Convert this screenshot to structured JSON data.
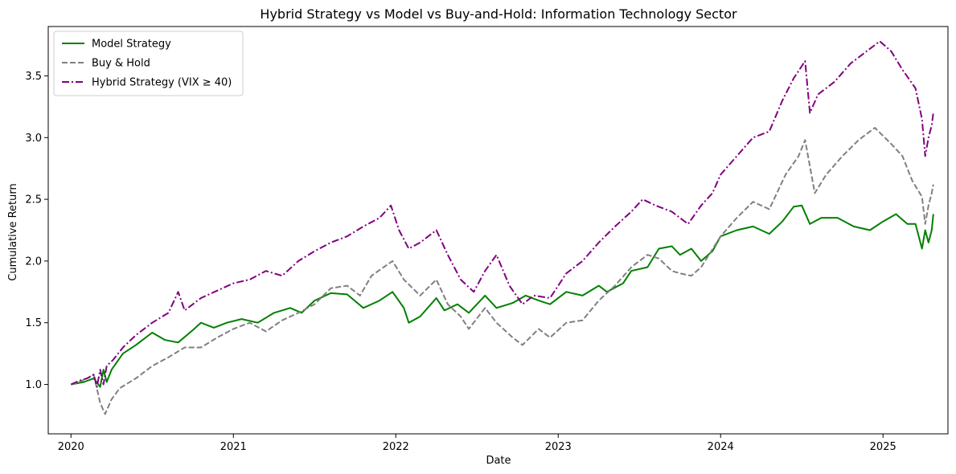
{
  "chart_data": {
    "type": "line",
    "title": "Hybrid Strategy vs Model vs Buy-and-Hold: Information Technology Sector",
    "xlabel": "Date",
    "ylabel": "Cumulative Return",
    "xlim": [
      2019.86,
      2025.4
    ],
    "ylim": [
      0.6,
      3.9
    ],
    "x_ticks": [
      2020,
      2021,
      2022,
      2023,
      2024,
      2025
    ],
    "x_tick_labels": [
      "2020",
      "2021",
      "2022",
      "2023",
      "2024",
      "2025"
    ],
    "y_ticks": [
      1.0,
      1.5,
      2.0,
      2.5,
      3.0,
      3.5
    ],
    "y_tick_labels": [
      "1.0",
      "1.5",
      "2.0",
      "2.5",
      "3.0",
      "3.5"
    ],
    "grid": false,
    "legend_position": "top-left",
    "series": [
      {
        "name": "Model Strategy",
        "color": "#008000",
        "style": "solid",
        "points": [
          [
            2020.0,
            1.0
          ],
          [
            2020.08,
            1.02
          ],
          [
            2020.14,
            1.05
          ],
          [
            2020.18,
            0.98
          ],
          [
            2020.2,
            1.12
          ],
          [
            2020.22,
            1.02
          ],
          [
            2020.25,
            1.12
          ],
          [
            2020.32,
            1.25
          ],
          [
            2020.4,
            1.32
          ],
          [
            2020.5,
            1.42
          ],
          [
            2020.58,
            1.36
          ],
          [
            2020.66,
            1.34
          ],
          [
            2020.75,
            1.44
          ],
          [
            2020.8,
            1.5
          ],
          [
            2020.88,
            1.46
          ],
          [
            2020.96,
            1.5
          ],
          [
            2021.05,
            1.53
          ],
          [
            2021.15,
            1.5
          ],
          [
            2021.25,
            1.58
          ],
          [
            2021.35,
            1.62
          ],
          [
            2021.42,
            1.58
          ],
          [
            2021.5,
            1.68
          ],
          [
            2021.6,
            1.74
          ],
          [
            2021.7,
            1.73
          ],
          [
            2021.8,
            1.62
          ],
          [
            2021.9,
            1.68
          ],
          [
            2021.98,
            1.75
          ],
          [
            2022.05,
            1.62
          ],
          [
            2022.08,
            1.5
          ],
          [
            2022.15,
            1.55
          ],
          [
            2022.25,
            1.7
          ],
          [
            2022.3,
            1.6
          ],
          [
            2022.38,
            1.65
          ],
          [
            2022.45,
            1.58
          ],
          [
            2022.55,
            1.72
          ],
          [
            2022.62,
            1.62
          ],
          [
            2022.72,
            1.66
          ],
          [
            2022.8,
            1.72
          ],
          [
            2022.88,
            1.68
          ],
          [
            2022.95,
            1.65
          ],
          [
            2023.05,
            1.75
          ],
          [
            2023.15,
            1.72
          ],
          [
            2023.25,
            1.8
          ],
          [
            2023.3,
            1.75
          ],
          [
            2023.4,
            1.82
          ],
          [
            2023.45,
            1.92
          ],
          [
            2023.55,
            1.95
          ],
          [
            2023.62,
            2.1
          ],
          [
            2023.7,
            2.12
          ],
          [
            2023.75,
            2.05
          ],
          [
            2023.82,
            2.1
          ],
          [
            2023.88,
            2.0
          ],
          [
            2023.95,
            2.08
          ],
          [
            2024.0,
            2.2
          ],
          [
            2024.1,
            2.25
          ],
          [
            2024.2,
            2.28
          ],
          [
            2024.3,
            2.22
          ],
          [
            2024.38,
            2.32
          ],
          [
            2024.45,
            2.44
          ],
          [
            2024.5,
            2.45
          ],
          [
            2024.55,
            2.3
          ],
          [
            2024.62,
            2.35
          ],
          [
            2024.72,
            2.35
          ],
          [
            2024.82,
            2.28
          ],
          [
            2024.92,
            2.25
          ],
          [
            2025.0,
            2.32
          ],
          [
            2025.08,
            2.38
          ],
          [
            2025.15,
            2.3
          ],
          [
            2025.2,
            2.3
          ],
          [
            2025.24,
            2.1
          ],
          [
            2025.26,
            2.25
          ],
          [
            2025.28,
            2.15
          ],
          [
            2025.3,
            2.25
          ],
          [
            2025.31,
            2.38
          ]
        ]
      },
      {
        "name": "Buy & Hold",
        "color": "#808080",
        "style": "dashed",
        "points": [
          [
            2020.0,
            1.0
          ],
          [
            2020.05,
            1.02
          ],
          [
            2020.1,
            1.05
          ],
          [
            2020.14,
            1.08
          ],
          [
            2020.18,
            0.85
          ],
          [
            2020.21,
            0.76
          ],
          [
            2020.25,
            0.88
          ],
          [
            2020.3,
            0.97
          ],
          [
            2020.4,
            1.05
          ],
          [
            2020.5,
            1.15
          ],
          [
            2020.6,
            1.22
          ],
          [
            2020.7,
            1.3
          ],
          [
            2020.8,
            1.3
          ],
          [
            2020.9,
            1.38
          ],
          [
            2021.0,
            1.45
          ],
          [
            2021.1,
            1.5
          ],
          [
            2021.2,
            1.43
          ],
          [
            2021.3,
            1.52
          ],
          [
            2021.4,
            1.58
          ],
          [
            2021.5,
            1.65
          ],
          [
            2021.6,
            1.78
          ],
          [
            2021.7,
            1.8
          ],
          [
            2021.78,
            1.72
          ],
          [
            2021.85,
            1.88
          ],
          [
            2021.98,
            2.0
          ],
          [
            2022.05,
            1.85
          ],
          [
            2022.15,
            1.72
          ],
          [
            2022.25,
            1.85
          ],
          [
            2022.32,
            1.65
          ],
          [
            2022.4,
            1.55
          ],
          [
            2022.45,
            1.45
          ],
          [
            2022.55,
            1.62
          ],
          [
            2022.62,
            1.5
          ],
          [
            2022.72,
            1.38
          ],
          [
            2022.78,
            1.32
          ],
          [
            2022.88,
            1.45
          ],
          [
            2022.95,
            1.38
          ],
          [
            2023.05,
            1.5
          ],
          [
            2023.15,
            1.52
          ],
          [
            2023.25,
            1.68
          ],
          [
            2023.35,
            1.8
          ],
          [
            2023.45,
            1.95
          ],
          [
            2023.55,
            2.05
          ],
          [
            2023.62,
            2.02
          ],
          [
            2023.7,
            1.92
          ],
          [
            2023.75,
            1.9
          ],
          [
            2023.82,
            1.88
          ],
          [
            2023.88,
            1.95
          ],
          [
            2024.0,
            2.2
          ],
          [
            2024.1,
            2.35
          ],
          [
            2024.2,
            2.48
          ],
          [
            2024.3,
            2.42
          ],
          [
            2024.4,
            2.7
          ],
          [
            2024.48,
            2.85
          ],
          [
            2024.52,
            2.98
          ],
          [
            2024.58,
            2.55
          ],
          [
            2024.65,
            2.7
          ],
          [
            2024.75,
            2.85
          ],
          [
            2024.85,
            2.98
          ],
          [
            2024.95,
            3.08
          ],
          [
            2025.05,
            2.95
          ],
          [
            2025.12,
            2.85
          ],
          [
            2025.18,
            2.65
          ],
          [
            2025.24,
            2.52
          ],
          [
            2025.26,
            2.3
          ],
          [
            2025.28,
            2.45
          ],
          [
            2025.3,
            2.55
          ],
          [
            2025.31,
            2.62
          ]
        ]
      },
      {
        "name": "Hybrid Strategy (VIX ≥ 40)",
        "color": "#800080",
        "style": "dashdot",
        "points": [
          [
            2020.0,
            1.0
          ],
          [
            2020.05,
            1.03
          ],
          [
            2020.1,
            1.05
          ],
          [
            2020.14,
            1.08
          ],
          [
            2020.16,
            0.98
          ],
          [
            2020.18,
            1.12
          ],
          [
            2020.2,
            1.0
          ],
          [
            2020.22,
            1.15
          ],
          [
            2020.26,
            1.2
          ],
          [
            2020.32,
            1.3
          ],
          [
            2020.4,
            1.4
          ],
          [
            2020.5,
            1.5
          ],
          [
            2020.6,
            1.58
          ],
          [
            2020.66,
            1.75
          ],
          [
            2020.7,
            1.6
          ],
          [
            2020.8,
            1.7
          ],
          [
            2020.9,
            1.76
          ],
          [
            2021.0,
            1.82
          ],
          [
            2021.1,
            1.85
          ],
          [
            2021.2,
            1.92
          ],
          [
            2021.3,
            1.88
          ],
          [
            2021.4,
            2.0
          ],
          [
            2021.5,
            2.08
          ],
          [
            2021.6,
            2.15
          ],
          [
            2021.7,
            2.2
          ],
          [
            2021.8,
            2.28
          ],
          [
            2021.9,
            2.35
          ],
          [
            2021.97,
            2.45
          ],
          [
            2022.02,
            2.25
          ],
          [
            2022.08,
            2.1
          ],
          [
            2022.15,
            2.15
          ],
          [
            2022.25,
            2.25
          ],
          [
            2022.32,
            2.05
          ],
          [
            2022.4,
            1.85
          ],
          [
            2022.48,
            1.75
          ],
          [
            2022.55,
            1.92
          ],
          [
            2022.62,
            2.05
          ],
          [
            2022.7,
            1.8
          ],
          [
            2022.78,
            1.65
          ],
          [
            2022.85,
            1.72
          ],
          [
            2022.95,
            1.7
          ],
          [
            2023.05,
            1.9
          ],
          [
            2023.15,
            2.0
          ],
          [
            2023.25,
            2.15
          ],
          [
            2023.35,
            2.28
          ],
          [
            2023.45,
            2.4
          ],
          [
            2023.52,
            2.5
          ],
          [
            2023.6,
            2.45
          ],
          [
            2023.7,
            2.4
          ],
          [
            2023.8,
            2.3
          ],
          [
            2023.88,
            2.45
          ],
          [
            2023.95,
            2.55
          ],
          [
            2024.0,
            2.7
          ],
          [
            2024.1,
            2.85
          ],
          [
            2024.2,
            3.0
          ],
          [
            2024.3,
            3.05
          ],
          [
            2024.38,
            3.3
          ],
          [
            2024.45,
            3.48
          ],
          [
            2024.52,
            3.62
          ],
          [
            2024.55,
            3.2
          ],
          [
            2024.6,
            3.35
          ],
          [
            2024.7,
            3.45
          ],
          [
            2024.8,
            3.6
          ],
          [
            2024.9,
            3.7
          ],
          [
            2024.98,
            3.78
          ],
          [
            2025.05,
            3.7
          ],
          [
            2025.12,
            3.55
          ],
          [
            2025.2,
            3.4
          ],
          [
            2025.24,
            3.15
          ],
          [
            2025.26,
            2.85
          ],
          [
            2025.28,
            3.0
          ],
          [
            2025.3,
            3.1
          ],
          [
            2025.31,
            3.2
          ]
        ]
      }
    ]
  }
}
